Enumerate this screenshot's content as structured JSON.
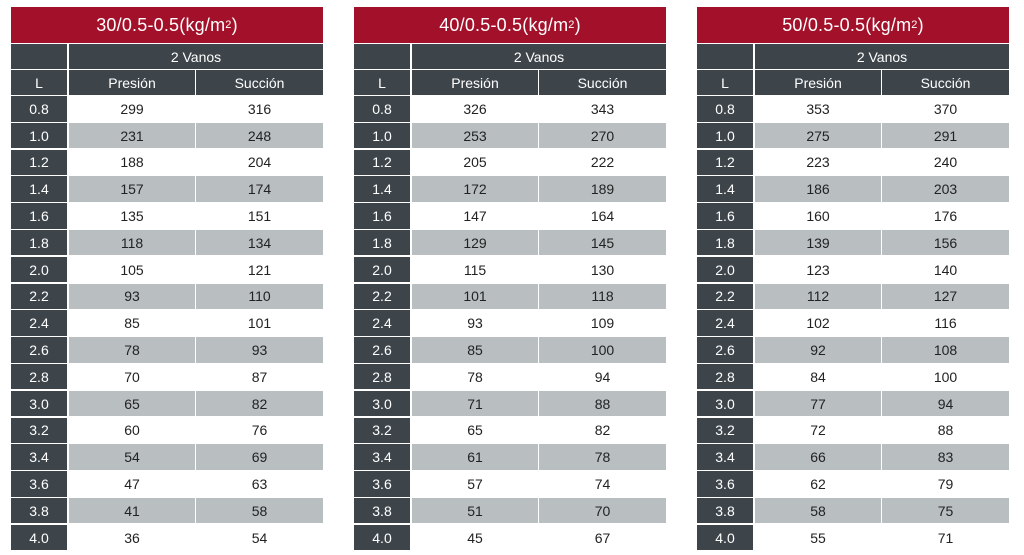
{
  "tables": [
    {
      "title_main": "30/0.5-0.5(kg/m",
      "title_sup": "2",
      "title_end": ")",
      "span_header": "2 Vanos",
      "col_l": "L",
      "col_presion": "Presión",
      "col_succion": "Succión",
      "rows": [
        {
          "l": "0.8",
          "p": "299",
          "s": "316"
        },
        {
          "l": "1.0",
          "p": "231",
          "s": "248"
        },
        {
          "l": "1.2",
          "p": "188",
          "s": "204"
        },
        {
          "l": "1.4",
          "p": "157",
          "s": "174"
        },
        {
          "l": "1.6",
          "p": "135",
          "s": "151"
        },
        {
          "l": "1.8",
          "p": "118",
          "s": "134"
        },
        {
          "l": "2.0",
          "p": "105",
          "s": "121"
        },
        {
          "l": "2.2",
          "p": "93",
          "s": "110"
        },
        {
          "l": "2.4",
          "p": "85",
          "s": "101"
        },
        {
          "l": "2.6",
          "p": "78",
          "s": "93"
        },
        {
          "l": "2.8",
          "p": "70",
          "s": "87"
        },
        {
          "l": "3.0",
          "p": "65",
          "s": "82"
        },
        {
          "l": "3.2",
          "p": "60",
          "s": "76"
        },
        {
          "l": "3.4",
          "p": "54",
          "s": "69"
        },
        {
          "l": "3.6",
          "p": "47",
          "s": "63"
        },
        {
          "l": "3.8",
          "p": "41",
          "s": "58"
        },
        {
          "l": "4.0",
          "p": "36",
          "s": "54"
        }
      ]
    },
    {
      "title_main": "40/0.5-0.5(kg/m",
      "title_sup": "2",
      "title_end": ")",
      "span_header": "2 Vanos",
      "col_l": "L",
      "col_presion": "Presión",
      "col_succion": "Succión",
      "rows": [
        {
          "l": "0.8",
          "p": "326",
          "s": "343"
        },
        {
          "l": "1.0",
          "p": "253",
          "s": "270"
        },
        {
          "l": "1.2",
          "p": "205",
          "s": "222"
        },
        {
          "l": "1.4",
          "p": "172",
          "s": "189"
        },
        {
          "l": "1.6",
          "p": "147",
          "s": "164"
        },
        {
          "l": "1.8",
          "p": "129",
          "s": "145"
        },
        {
          "l": "2.0",
          "p": "115",
          "s": "130"
        },
        {
          "l": "2.2",
          "p": "101",
          "s": "118"
        },
        {
          "l": "2.4",
          "p": "93",
          "s": "109"
        },
        {
          "l": "2.6",
          "p": "85",
          "s": "100"
        },
        {
          "l": "2.8",
          "p": "78",
          "s": "94"
        },
        {
          "l": "3.0",
          "p": "71",
          "s": "88"
        },
        {
          "l": "3.2",
          "p": "65",
          "s": "82"
        },
        {
          "l": "3.4",
          "p": "61",
          "s": "78"
        },
        {
          "l": "3.6",
          "p": "57",
          "s": "74"
        },
        {
          "l": "3.8",
          "p": "51",
          "s": "70"
        },
        {
          "l": "4.0",
          "p": "45",
          "s": "67"
        }
      ]
    },
    {
      "title_main": "50/0.5-0.5(kg/m",
      "title_sup": "2",
      "title_end": ")",
      "span_header": "2 Vanos",
      "col_l": "L",
      "col_presion": "Presión",
      "col_succion": "Succión",
      "rows": [
        {
          "l": "0.8",
          "p": "353",
          "s": "370"
        },
        {
          "l": "1.0",
          "p": "275",
          "s": "291"
        },
        {
          "l": "1.2",
          "p": "223",
          "s": "240"
        },
        {
          "l": "1.4",
          "p": "186",
          "s": "203"
        },
        {
          "l": "1.6",
          "p": "160",
          "s": "176"
        },
        {
          "l": "1.8",
          "p": "139",
          "s": "156"
        },
        {
          "l": "2.0",
          "p": "123",
          "s": "140"
        },
        {
          "l": "2.2",
          "p": "112",
          "s": "127"
        },
        {
          "l": "2.4",
          "p": "102",
          "s": "116"
        },
        {
          "l": "2.6",
          "p": "92",
          "s": "108"
        },
        {
          "l": "2.8",
          "p": "84",
          "s": "100"
        },
        {
          "l": "3.0",
          "p": "77",
          "s": "94"
        },
        {
          "l": "3.2",
          "p": "72",
          "s": "88"
        },
        {
          "l": "3.4",
          "p": "66",
          "s": "83"
        },
        {
          "l": "3.6",
          "p": "62",
          "s": "79"
        },
        {
          "l": "3.8",
          "p": "58",
          "s": "75"
        },
        {
          "l": "4.0",
          "p": "55",
          "s": "71"
        }
      ]
    }
  ],
  "colors": {
    "title_bg": "#a3102a",
    "header_bg": "#3d454b",
    "stripe_bg": "#b9bec1"
  }
}
